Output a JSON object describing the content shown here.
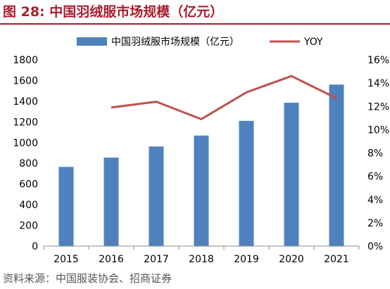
{
  "figure": {
    "title": "图 28: 中国羽绒服市场规模（亿元）",
    "source": "资料来源：中国服装协会、招商证券"
  },
  "chart_data": {
    "type": "bar",
    "categories": [
      "2015",
      "2016",
      "2017",
      "2018",
      "2019",
      "2020",
      "2021"
    ],
    "series": [
      {
        "name": "中国羽绒服市场规模（亿元）",
        "type": "bar",
        "axis": "left",
        "values": [
          765,
          855,
          962,
          1068,
          1210,
          1385,
          1560
        ],
        "color": "#4f81bd"
      },
      {
        "name": "YOY",
        "type": "line",
        "axis": "right",
        "values": [
          null,
          11.9,
          12.4,
          10.9,
          13.2,
          14.6,
          12.7
        ],
        "unit": "%",
        "color": "#c0504d"
      }
    ],
    "y_left": {
      "min": 0,
      "max": 1800,
      "step": 200
    },
    "y_right": {
      "min": 0,
      "max": 16,
      "step": 2,
      "unit": "%"
    },
    "legend": {
      "position": "top"
    },
    "grid": false
  }
}
